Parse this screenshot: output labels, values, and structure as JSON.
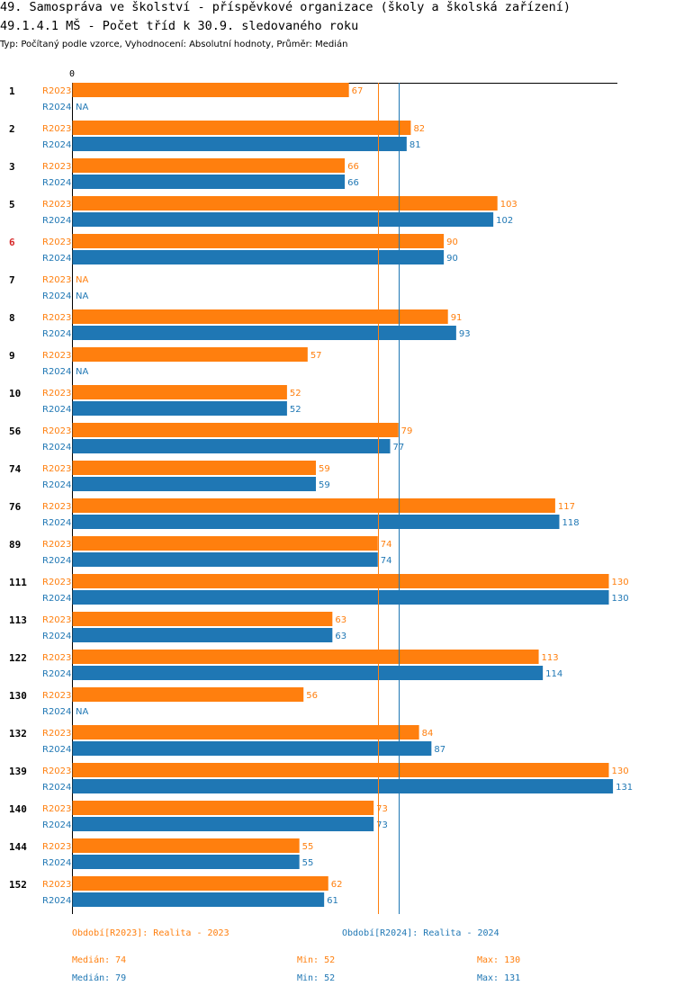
{
  "header": {
    "title_line1": "49. Samospráva ve školství - příspěvkové organizace (školy a školská zařízení)",
    "title_line2": "49.1.4.1 MŠ - Počet tříd k 30.9. sledovaného roku",
    "subtitle": "Typ: Počítaný podle vzorce, Vyhodnocení: Absolutní hodnoty, Průměr: Medián"
  },
  "colors": {
    "r2023": "#ff7f0e",
    "r2024": "#1f77b4",
    "highlight": "#d62728"
  },
  "chart_data": {
    "type": "bar",
    "orientation": "horizontal",
    "axis_start_label": "0",
    "xlim": [
      0,
      131
    ],
    "highlighted_category": "6",
    "categories": [
      "1",
      "2",
      "3",
      "5",
      "6",
      "7",
      "8",
      "9",
      "10",
      "56",
      "74",
      "76",
      "89",
      "111",
      "113",
      "122",
      "130",
      "132",
      "139",
      "140",
      "144",
      "152"
    ],
    "series": [
      {
        "name": "R2023",
        "label": "R2023",
        "values": [
          67,
          82,
          66,
          103,
          90,
          null,
          91,
          57,
          52,
          79,
          59,
          117,
          74,
          130,
          63,
          113,
          56,
          84,
          130,
          73,
          55,
          62
        ]
      },
      {
        "name": "R2024",
        "label": "R2024",
        "values": [
          null,
          81,
          66,
          102,
          90,
          null,
          93,
          null,
          52,
          77,
          59,
          118,
          74,
          130,
          63,
          114,
          null,
          87,
          131,
          73,
          55,
          61
        ]
      }
    ],
    "na_label": "NA",
    "reference_lines": [
      {
        "series": "R2023",
        "value": 74,
        "label": "Medián"
      },
      {
        "series": "R2024",
        "value": 79,
        "label": "Medián"
      }
    ]
  },
  "legend": {
    "r2023": "Období[R2023]: Realita - 2023",
    "r2024": "Období[R2024]: Realita - 2024"
  },
  "stats": {
    "r2023": {
      "median": "Medián: 74",
      "min": "Min: 52",
      "max": "Max: 130"
    },
    "r2024": {
      "median": "Medián: 79",
      "min": "Min: 52",
      "max": "Max: 131"
    }
  }
}
